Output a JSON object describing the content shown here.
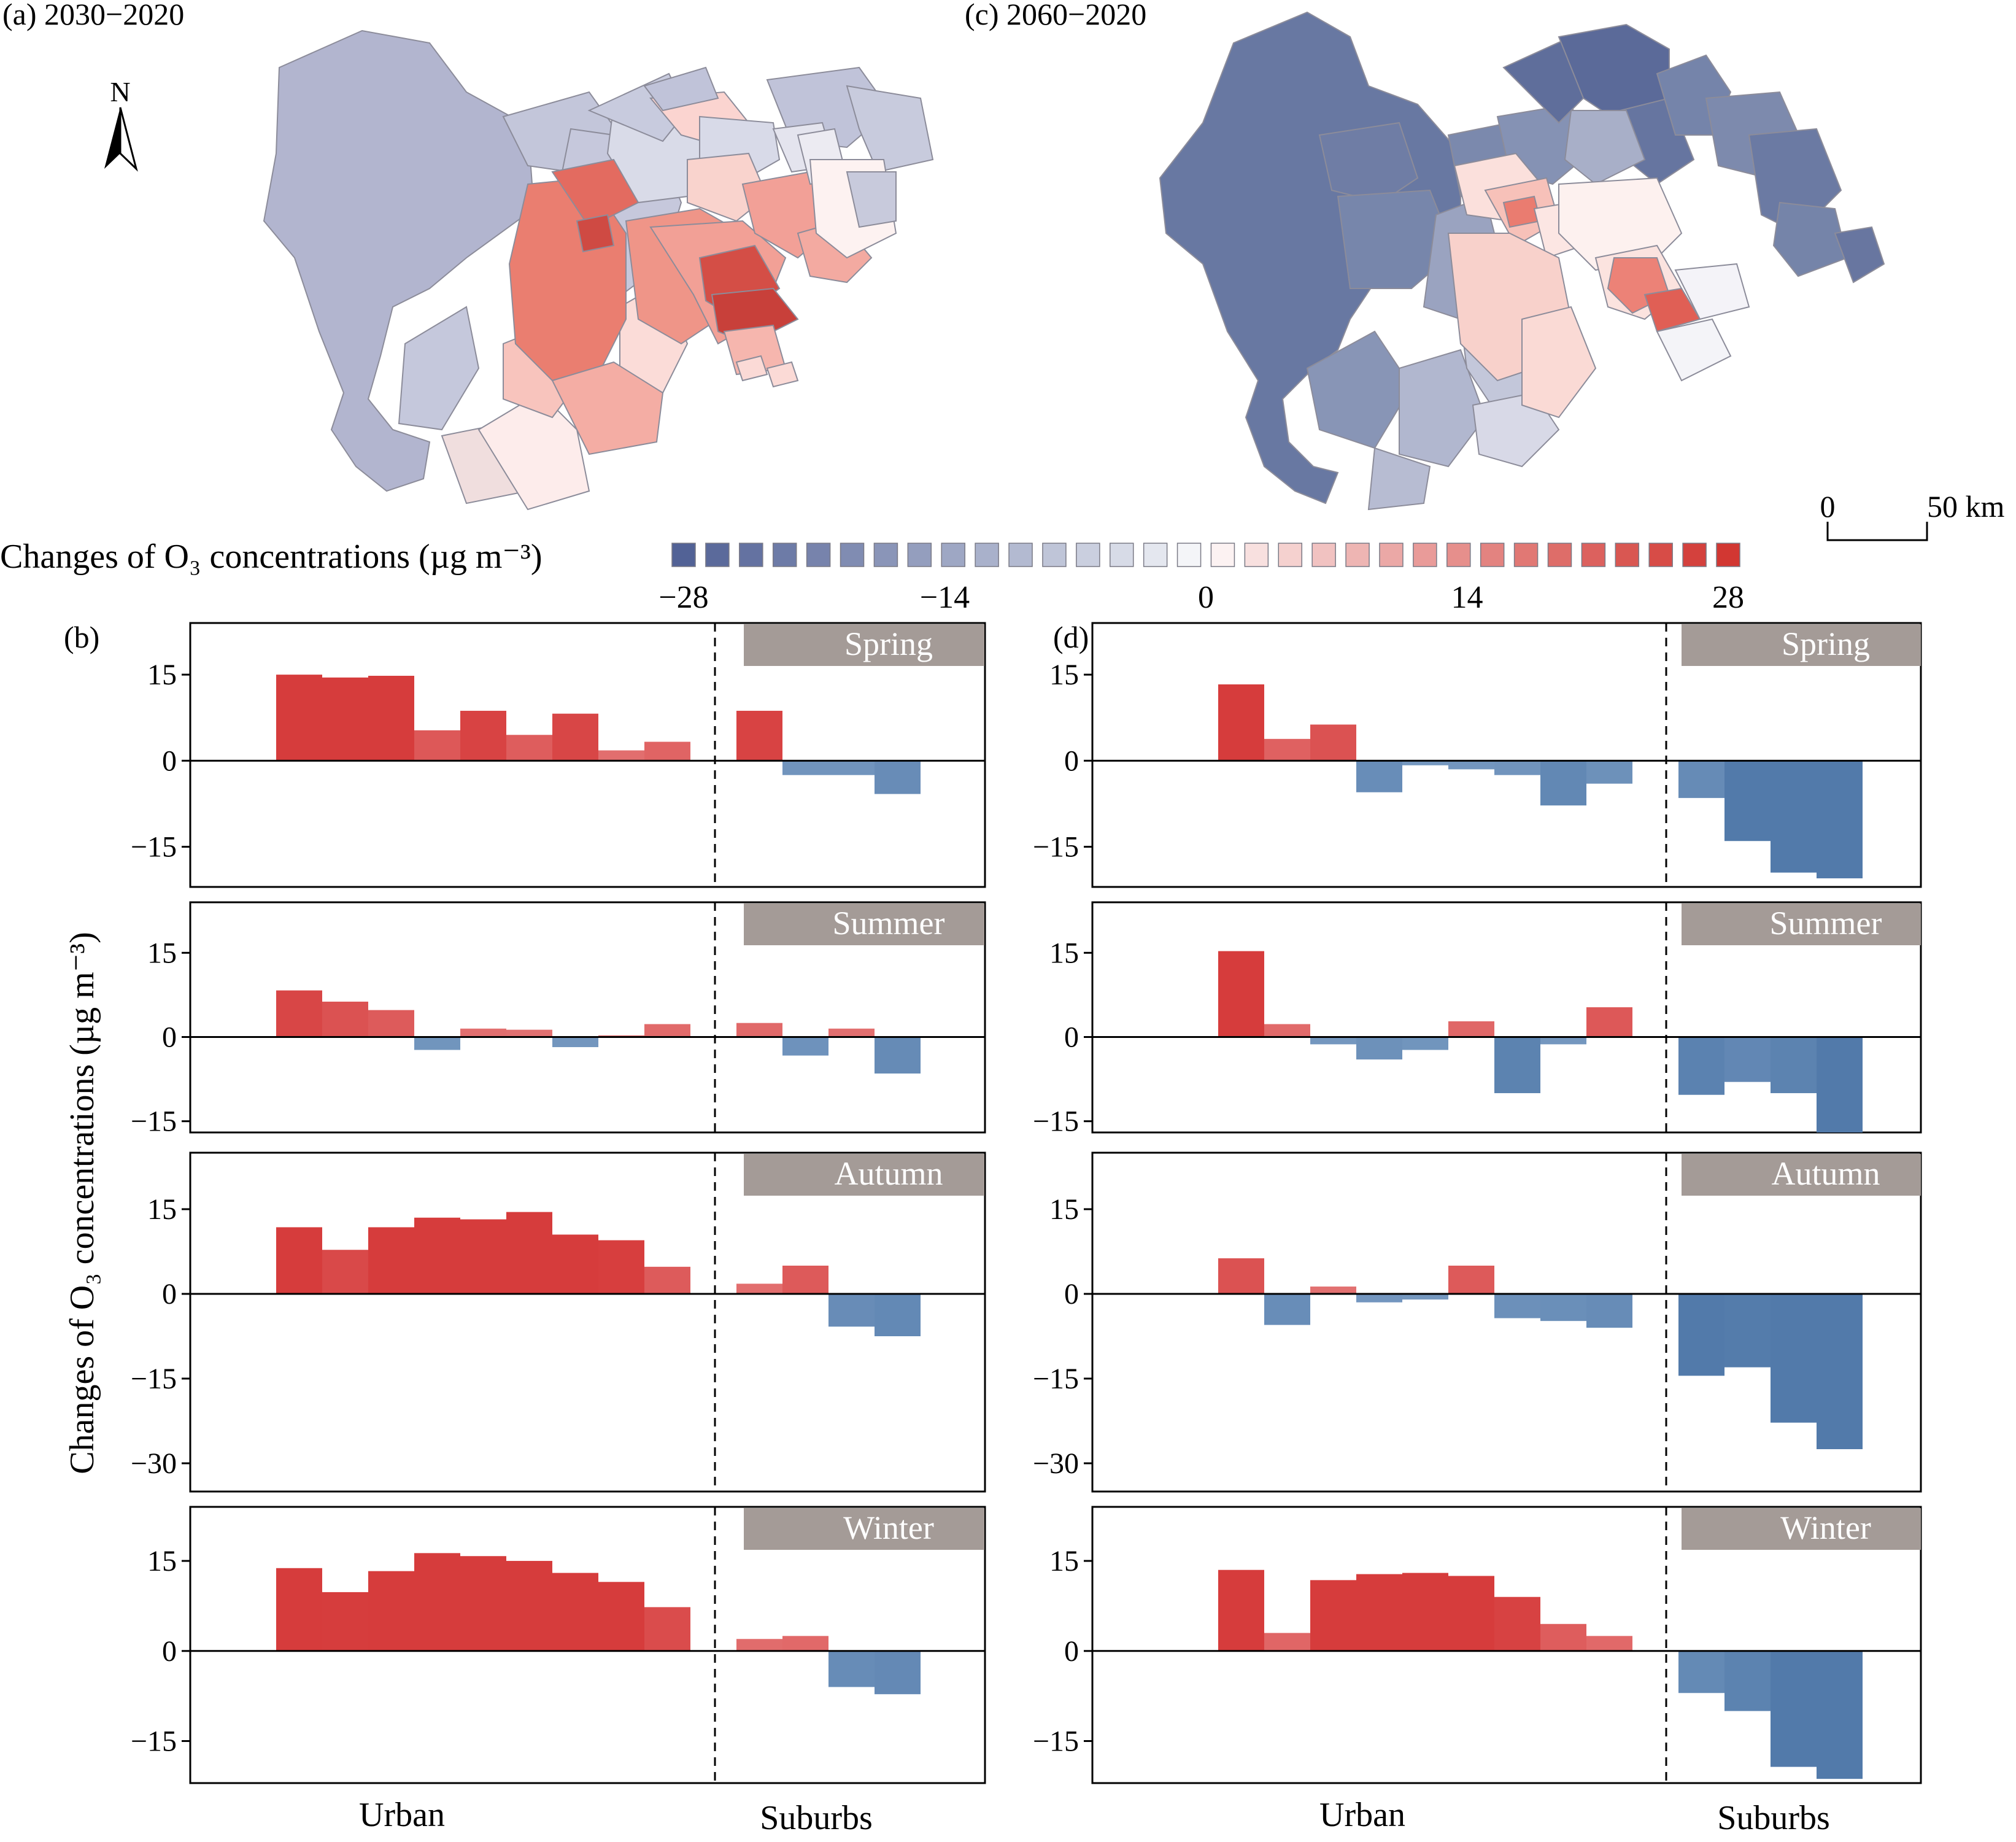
{
  "maps": [
    {
      "panel_label": "(a) 2030−2020"
    },
    {
      "panel_label": "(c) 2060−2020"
    }
  ],
  "north_arrow": {
    "label": "N"
  },
  "scale_bar": {
    "start": "0",
    "end": "50 km"
  },
  "colorbar": {
    "label": "Changes of O₃ concentrations (µg m⁻³)",
    "ticks": [
      "−28",
      "−14",
      "0",
      "14",
      "28"
    ],
    "range": [
      -28,
      28
    ]
  },
  "chart_data": [
    {
      "panel_label": "(b)",
      "type": "bar",
      "ylabel": "Changes of O₃ concentrations (µg m⁻³)",
      "group_labels": [
        "Urban",
        "Suburbs"
      ],
      "facets": [
        {
          "season": "Spring",
          "ylim": [
            -22,
            24
          ],
          "yticks": [
            "15",
            "0",
            "−15"
          ],
          "yvals": [
            15,
            0,
            -15
          ],
          "urban": [
            15,
            14.5,
            14.8,
            5.3,
            8.7,
            4.5,
            8.2,
            1.8,
            3.3
          ],
          "suburbs": [
            8.7,
            -2.5,
            -2.5,
            -5.8
          ]
        },
        {
          "season": "Summer",
          "ylim": [
            -17,
            24
          ],
          "yticks": [
            "15",
            "0",
            "−15"
          ],
          "yvals": [
            15,
            0,
            -15
          ],
          "urban": [
            8.3,
            6.3,
            4.8,
            -2.3,
            1.5,
            1.3,
            -1.8,
            0.3,
            2.3
          ],
          "suburbs": [
            2.5,
            -3.3,
            1.5,
            -6.5
          ]
        },
        {
          "season": "Autumn",
          "ylim": [
            -35,
            25
          ],
          "yticks": [
            "15",
            "0",
            "−15",
            "−30"
          ],
          "yvals": [
            15,
            0,
            -15,
            -30
          ],
          "urban": [
            11.8,
            7.8,
            11.8,
            13.5,
            13.2,
            14.5,
            10.5,
            9.5,
            4.8
          ],
          "suburbs": [
            1.8,
            5.0,
            -5.8,
            -7.5
          ]
        },
        {
          "season": "Winter",
          "ylim": [
            -22,
            24
          ],
          "yticks": [
            "15",
            "0",
            "−15"
          ],
          "yvals": [
            15,
            0,
            -15
          ],
          "urban": [
            13.8,
            9.8,
            13.3,
            16.3,
            15.8,
            15.0,
            13.0,
            11.5,
            7.3
          ],
          "suburbs": [
            2.0,
            2.5,
            -6.0,
            -7.2
          ]
        }
      ]
    },
    {
      "panel_label": "(d)",
      "type": "bar",
      "ylabel": "Changes of O₃ concentrations (µg m⁻³)",
      "group_labels": [
        "Urban",
        "Suburbs"
      ],
      "facets": [
        {
          "season": "Spring",
          "ylim": [
            -22,
            24
          ],
          "yticks": [
            "15",
            "0",
            "−15"
          ],
          "yvals": [
            15,
            0,
            -15
          ],
          "urban": [
            13.3,
            3.8,
            6.3,
            -5.5,
            -0.8,
            -1.5,
            -2.5,
            -7.8,
            -4.0
          ],
          "suburbs": [
            -6.5,
            -14.0,
            -19.5,
            -20.5
          ]
        },
        {
          "season": "Summer",
          "ylim": [
            -17,
            24
          ],
          "yticks": [
            "15",
            "0",
            "−15"
          ],
          "yvals": [
            15,
            0,
            -15
          ],
          "urban": [
            15.3,
            2.3,
            -1.3,
            -4.0,
            -2.3,
            2.8,
            -10.0,
            -1.3,
            5.3
          ],
          "suburbs": [
            -10.3,
            -8.0,
            -10.0,
            -17.0
          ]
        },
        {
          "season": "Autumn",
          "ylim": [
            -35,
            25
          ],
          "yticks": [
            "15",
            "0",
            "−15",
            "−30"
          ],
          "yvals": [
            15,
            0,
            -15,
            -30
          ],
          "urban": [
            6.3,
            -5.5,
            1.3,
            -1.5,
            -1.0,
            5.0,
            -4.3,
            -4.8,
            -6.0
          ],
          "suburbs": [
            -14.5,
            -13.0,
            -22.8,
            -27.5
          ]
        },
        {
          "season": "Winter",
          "ylim": [
            -22,
            24
          ],
          "yticks": [
            "15",
            "0",
            "−15"
          ],
          "yvals": [
            15,
            0,
            -15
          ],
          "urban": [
            13.5,
            3.0,
            11.8,
            12.8,
            13.0,
            12.5,
            9.0,
            4.5,
            2.5
          ],
          "suburbs": [
            -7.0,
            -10.0,
            -19.3,
            -21.3
          ]
        }
      ]
    }
  ]
}
